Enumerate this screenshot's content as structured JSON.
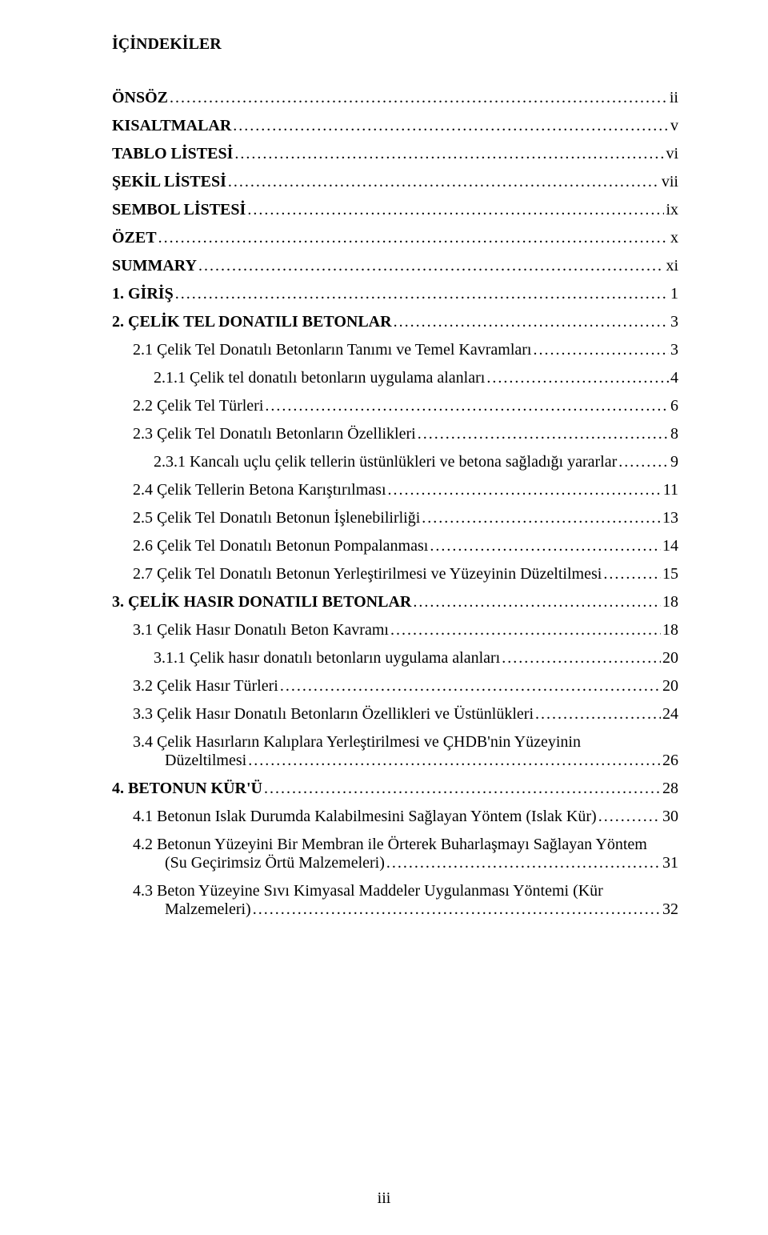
{
  "heading": "İÇİNDEKİLER",
  "pageNumber": "iii",
  "leaderChar": ".",
  "entries": [
    {
      "title": "ÖNSÖZ",
      "page": "ii",
      "indent": 0,
      "bold": true
    },
    {
      "title": "KISALTMALAR",
      "page": "v",
      "indent": 0,
      "bold": true
    },
    {
      "title": "TABLO LİSTESİ",
      "page": "vi",
      "indent": 0,
      "bold": true
    },
    {
      "title": "ŞEKİL LİSTESİ",
      "page": "vii",
      "indent": 0,
      "bold": true
    },
    {
      "title": "SEMBOL LİSTESİ",
      "page": "ix",
      "indent": 0,
      "bold": true
    },
    {
      "title": "ÖZET",
      "page": "x",
      "indent": 0,
      "bold": true
    },
    {
      "title": "SUMMARY",
      "page": "xi",
      "indent": 0,
      "bold": true
    },
    {
      "title": "1.  GİRİŞ",
      "page": "1",
      "indent": 0,
      "bold": true
    },
    {
      "title": "2.  ÇELİK TEL DONATILI BETONLAR",
      "page": "3",
      "indent": 0,
      "bold": true
    },
    {
      "title": "2.1  Çelik Tel Donatılı Betonların Tanımı ve Temel Kavramları",
      "page": "3",
      "indent": 1,
      "bold": false
    },
    {
      "title": "2.1.1 Çelik tel donatılı betonların uygulama alanları",
      "page": "4",
      "indent": 2,
      "bold": false
    },
    {
      "title": "2.2  Çelik Tel Türleri",
      "page": "6",
      "indent": 1,
      "bold": false
    },
    {
      "title": "2.3  Çelik Tel Donatılı Betonların Özellikleri",
      "page": "8",
      "indent": 1,
      "bold": false
    },
    {
      "title": "2.3.1 Kancalı uçlu çelik tellerin üstünlükleri ve betona sağladığı yararlar",
      "page": "9",
      "indent": 2,
      "bold": false
    },
    {
      "title": "2.4  Çelik Tellerin Betona Karıştırılması",
      "page": "11",
      "indent": 1,
      "bold": false
    },
    {
      "title": "2.5  Çelik Tel Donatılı Betonun İşlenebilirliği",
      "page": "13",
      "indent": 1,
      "bold": false
    },
    {
      "title": "2.6  Çelik Tel Donatılı Betonun Pompalanması",
      "page": "14",
      "indent": 1,
      "bold": false
    },
    {
      "title": "2.7  Çelik Tel Donatılı Betonun Yerleştirilmesi ve Yüzeyinin Düzeltilmesi",
      "page": "15",
      "indent": 1,
      "bold": false
    },
    {
      "title": "3.  ÇELİK HASIR DONATILI BETONLAR",
      "page": "18",
      "indent": 0,
      "bold": true
    },
    {
      "title": "3.1  Çelik Hasır Donatılı Beton Kavramı",
      "page": "18",
      "indent": 1,
      "bold": false
    },
    {
      "title": "3.1.1 Çelik hasır donatılı betonların uygulama alanları",
      "page": "20",
      "indent": 2,
      "bold": false
    },
    {
      "title": "3.2  Çelik Hasır Türleri",
      "page": "20",
      "indent": 1,
      "bold": false
    },
    {
      "title": "3.3  Çelik Hasır Donatılı Betonların Özellikleri ve Üstünlükleri",
      "page": "24",
      "indent": 1,
      "bold": false
    },
    {
      "title": "3.4  Çelik Hasırların Kalıplara Yerleştirilmesi ve ÇHDB'nin Yüzeyinin",
      "titleCont": "Düzeltilmesi",
      "page": "26",
      "indent": 1,
      "bold": false
    },
    {
      "title": "4. BETONUN KÜR'Ü",
      "page": "28",
      "indent": 0,
      "bold": true
    },
    {
      "title": "4.1 Betonun Islak Durumda Kalabilmesini Sağlayan Yöntem (Islak Kür)",
      "page": "30",
      "indent": 1,
      "bold": false
    },
    {
      "title": "4.2 Betonun Yüzeyini Bir Membran ile Örterek Buharlaşmayı Sağlayan Yöntem",
      "titleCont": "(Su Geçirimsiz Örtü Malzemeleri)",
      "page": "31",
      "indent": 1,
      "bold": false
    },
    {
      "title": "4.3 Beton Yüzeyine Sıvı Kimyasal Maddeler Uygulanması Yöntemi (Kür",
      "titleCont": "Malzemeleri)",
      "page": "32",
      "indent": 1,
      "bold": false
    }
  ]
}
